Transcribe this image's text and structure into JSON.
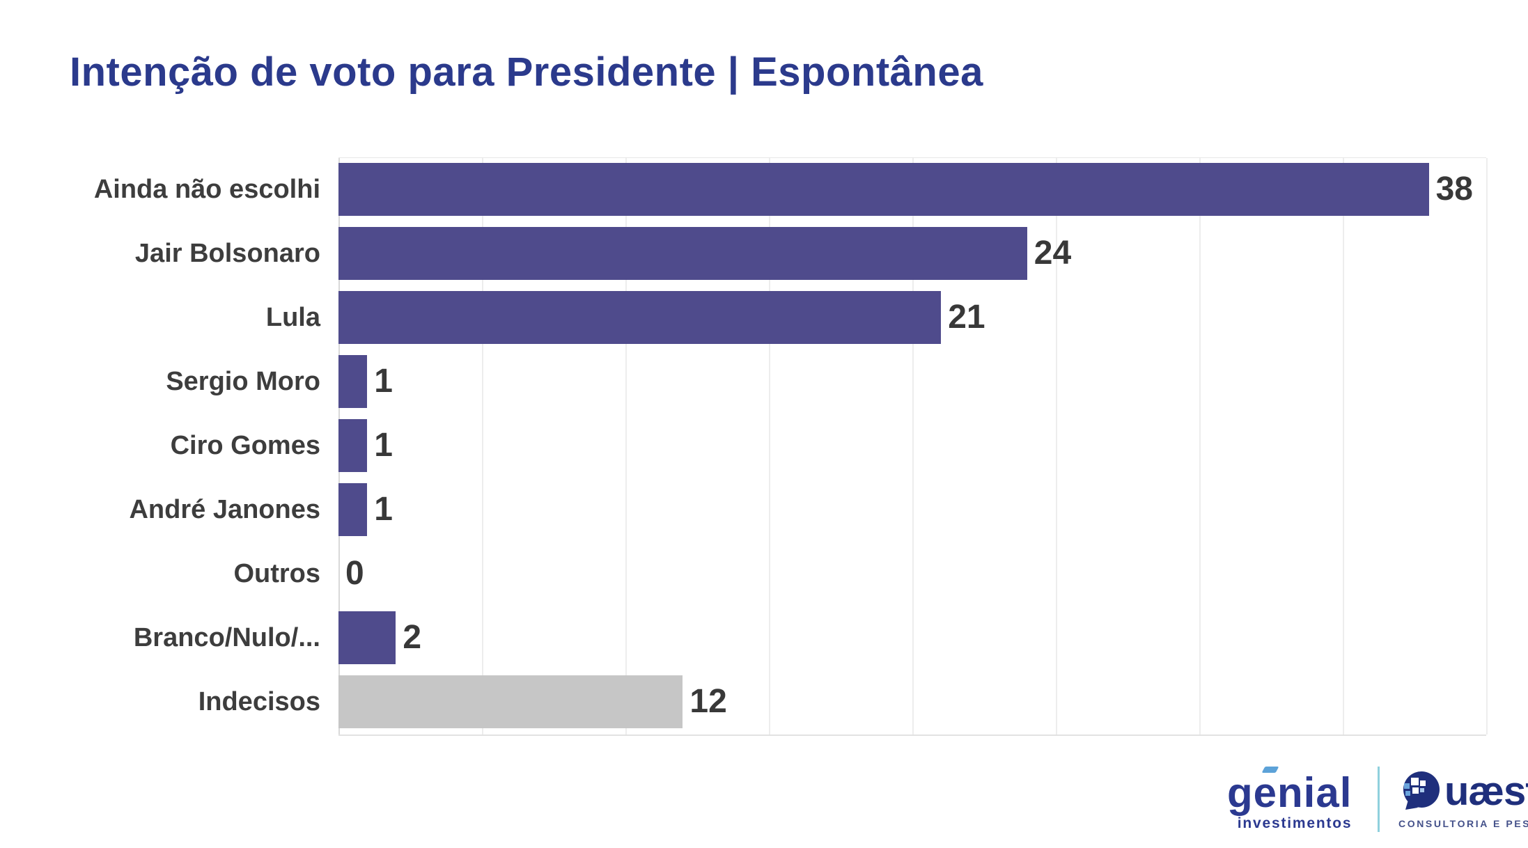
{
  "title": "Intenção de voto para Presidente | Espontânea",
  "chart_data": {
    "type": "bar",
    "orientation": "horizontal",
    "title": "Intenção de voto para Presidente | Espontânea",
    "categories": [
      "Ainda não escolhi",
      "Jair Bolsonaro",
      "Lula",
      "Sergio Moro",
      "Ciro Gomes",
      "André Janones",
      "Outros",
      "Branco/Nulo/...",
      "Indecisos"
    ],
    "values": [
      38,
      24,
      21,
      1,
      1,
      1,
      0,
      2,
      12
    ],
    "bar_colors": [
      "#4f4b8c",
      "#4f4b8c",
      "#4f4b8c",
      "#4f4b8c",
      "#4f4b8c",
      "#4f4b8c",
      "#4f4b8c",
      "#4f4b8c",
      "#c6c6c6"
    ],
    "value_label_position": "outside-end",
    "xlabel": "",
    "ylabel": "",
    "xlim": [
      0,
      40
    ],
    "gridline_step": 5,
    "grid": true,
    "legend": "none"
  },
  "colors": {
    "title": "#2b3a8c",
    "bar_primary": "#4f4b8c",
    "bar_muted": "#c6c6c6",
    "category_label": "#3d3d3d",
    "value_label": "#383838",
    "gridline": "#ededed",
    "axis_line": "#d9d9d9",
    "genial_blue": "#2b3990",
    "genial_accent": "#5ca2d8",
    "divider_teal": "#8fd0dd",
    "quaest_navy": "#1f2f7c"
  },
  "footer": {
    "genial": {
      "name": "genial",
      "subtitle": "investimentos"
    },
    "quaest": {
      "name": "Quæst",
      "wordmark_rest": "uæst",
      "subtitle": "CONSULTORIA E PESQUISA"
    }
  }
}
